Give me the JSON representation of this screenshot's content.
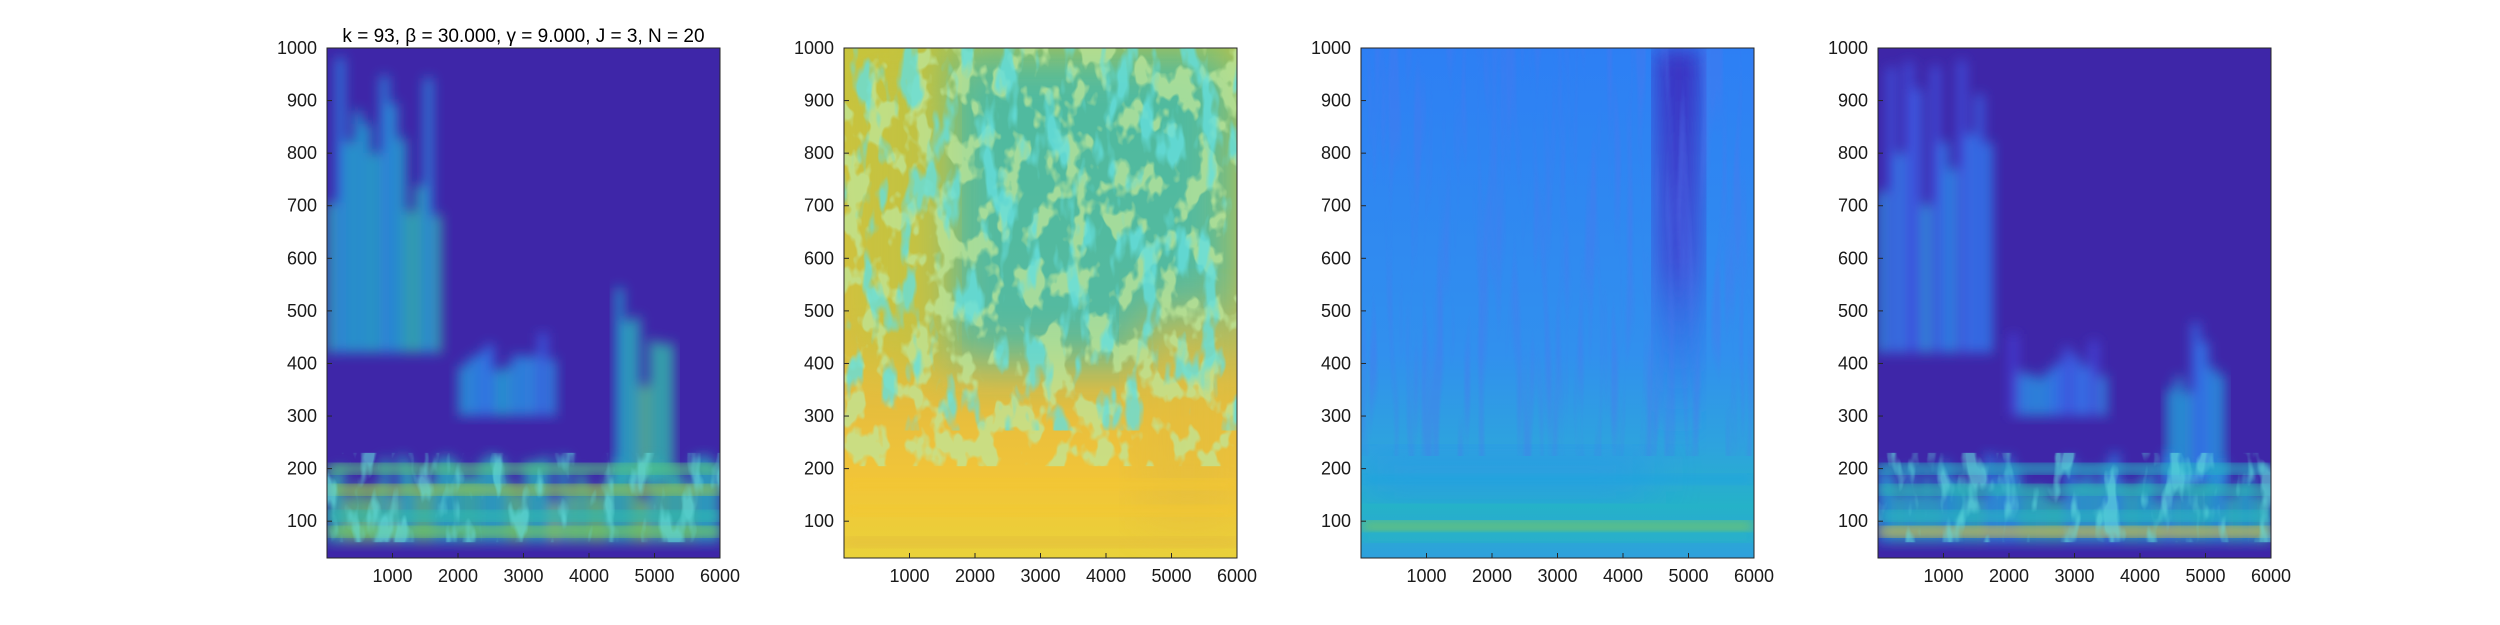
{
  "figure": {
    "colormap": "parula",
    "colors": {
      "background_low": "#3e26a8",
      "blue": "#2e87f7",
      "cyan": "#1fbfbc",
      "green": "#86cc4e",
      "yellow": "#fcd82b",
      "top": "#f9fb15"
    }
  },
  "chart_data": [
    {
      "type": "heatmap",
      "title": "k = 93, β = 30.000, γ = 9.000, J = 3, N = 20",
      "xlim": [
        0,
        6000
      ],
      "ylim": [
        30,
        1000
      ],
      "xticks": [
        1000,
        2000,
        3000,
        4000,
        5000,
        6000
      ],
      "yticks": [
        100,
        200,
        300,
        400,
        500,
        600,
        700,
        800,
        900,
        1000
      ],
      "grid": false,
      "background": "#3e26a8",
      "regions": [
        {
          "x": [
            0,
            1750
          ],
          "y": [
            420,
            1000
          ],
          "level": 0.45
        },
        {
          "x": [
            2000,
            3500
          ],
          "y": [
            300,
            460
          ],
          "level": 0.35
        },
        {
          "x": [
            4400,
            5300
          ],
          "y": [
            170,
            560
          ],
          "level": 0.55
        },
        {
          "x": [
            0,
            6000
          ],
          "y": [
            60,
            230
          ],
          "level": 0.6
        }
      ],
      "bands": [
        {
          "y": 80,
          "level": 0.7
        },
        {
          "y": 110,
          "level": 0.55
        },
        {
          "y": 160,
          "level": 0.75
        },
        {
          "y": 200,
          "level": 0.65
        }
      ]
    },
    {
      "type": "heatmap",
      "xlim": [
        0,
        6000
      ],
      "ylim": [
        30,
        1000
      ],
      "xticks": [
        1000,
        2000,
        3000,
        4000,
        5000,
        6000
      ],
      "yticks": [
        100,
        200,
        300,
        400,
        500,
        600,
        700,
        800,
        900,
        1000
      ],
      "grid": false,
      "background": "#e3bd3c",
      "regions": [
        {
          "x": [
            1500,
            6000
          ],
          "y": [
            400,
            1000
          ],
          "level": 0.5
        },
        {
          "x": [
            0,
            1500
          ],
          "y": [
            400,
            1000
          ],
          "level": 0.8
        },
        {
          "x": [
            4500,
            6000
          ],
          "y": [
            100,
            500
          ],
          "level": 0.85
        }
      ],
      "bands": [
        {
          "y": 60,
          "level": 0.85
        },
        {
          "y": 120,
          "level": 0.9
        },
        {
          "y": 170,
          "level": 0.9
        }
      ]
    },
    {
      "type": "heatmap",
      "xlim": [
        0,
        6000
      ],
      "ylim": [
        30,
        1000
      ],
      "xticks": [
        1000,
        2000,
        3000,
        4000,
        5000,
        6000
      ],
      "yticks": [
        100,
        200,
        300,
        400,
        500,
        600,
        700,
        800,
        900,
        1000
      ],
      "grid": false,
      "background": "#2f8ef2",
      "regions": [
        {
          "x": [
            4500,
            5200
          ],
          "y": [
            250,
            1000
          ],
          "level": 0.05
        },
        {
          "x": [
            0,
            4400
          ],
          "y": [
            150,
            230
          ],
          "level": 0.35
        }
      ],
      "bands": [
        {
          "y": 90,
          "level": 0.7
        },
        {
          "y": 70,
          "level": 0.5
        },
        {
          "y": 180,
          "level": 0.4
        }
      ]
    },
    {
      "type": "heatmap",
      "xlim": [
        0,
        6000
      ],
      "ylim": [
        30,
        1000
      ],
      "xticks": [
        1000,
        2000,
        3000,
        4000,
        5000,
        6000
      ],
      "yticks": [
        100,
        200,
        300,
        400,
        500,
        600,
        700,
        800,
        900,
        1000
      ],
      "grid": false,
      "background": "#3e26a8",
      "regions": [
        {
          "x": [
            0,
            1750
          ],
          "y": [
            420,
            1000
          ],
          "level": 0.3
        },
        {
          "x": [
            2000,
            3500
          ],
          "y": [
            300,
            460
          ],
          "level": 0.25
        },
        {
          "x": [
            4400,
            5300
          ],
          "y": [
            170,
            560
          ],
          "level": 0.3
        },
        {
          "x": [
            0,
            6000
          ],
          "y": [
            60,
            230
          ],
          "level": 0.45
        }
      ],
      "bands": [
        {
          "y": 80,
          "level": 0.85
        },
        {
          "y": 110,
          "level": 0.5
        },
        {
          "y": 160,
          "level": 0.55
        },
        {
          "y": 200,
          "level": 0.5
        }
      ]
    }
  ]
}
